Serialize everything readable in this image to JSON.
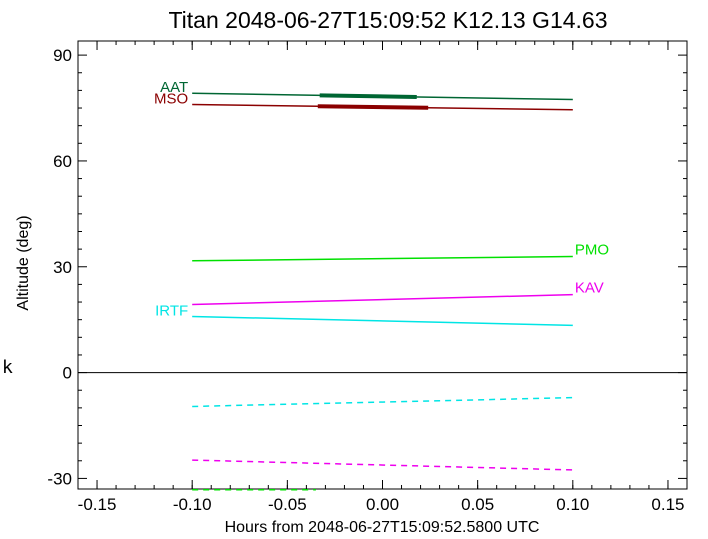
{
  "chart_data": {
    "type": "line",
    "title": "Titan 2048-06-27T15:09:52  K12.13  G14.63",
    "xlabel": "Hours from 2048-06-27T15:09:52.5800 UTC",
    "ylabel": "Altitude (deg)",
    "side_mark": "k",
    "xlim": [
      -0.16,
      0.16
    ],
    "ylim": [
      -33,
      94
    ],
    "xticks": [
      -0.15,
      -0.1,
      -0.05,
      0.0,
      0.05,
      0.1,
      0.15
    ],
    "xtick_labels": [
      "-0.15",
      "-0.10",
      "-0.05",
      "0.00",
      "0.05",
      "0.10",
      "0.15"
    ],
    "yticks": [
      -30,
      0,
      30,
      60,
      90
    ],
    "ytick_labels": [
      "-30",
      "0",
      "30",
      "60",
      "90"
    ],
    "zero_line": 0,
    "series": [
      {
        "name": "AAT",
        "color": "#006633",
        "label_side": "left",
        "x": [
          -0.1,
          0.1
        ],
        "y": [
          79.2,
          77.4
        ],
        "highlight": [
          -0.033,
          0.018
        ]
      },
      {
        "name": "MSO",
        "color": "#8b0000",
        "label_side": "left",
        "x": [
          -0.1,
          0.1
        ],
        "y": [
          76.0,
          74.5
        ],
        "highlight": [
          -0.034,
          0.024
        ]
      },
      {
        "name": "PMO",
        "color": "#00e000",
        "label_side": "right",
        "x": [
          -0.1,
          0.1
        ],
        "y": [
          31.7,
          32.9
        ]
      },
      {
        "name": "KAV",
        "color": "#ee00ee",
        "label_side": "right",
        "x": [
          -0.1,
          0.1
        ],
        "y": [
          19.3,
          22.1
        ]
      },
      {
        "name": "IRTF",
        "color": "#00e5e5",
        "label_side": "left",
        "x": [
          -0.1,
          0.1
        ],
        "y": [
          15.9,
          13.4
        ]
      }
    ],
    "dashed_series": [
      {
        "color": "#00e5e5",
        "x": [
          -0.1,
          0.1
        ],
        "y": [
          -9.6,
          -7.1
        ]
      },
      {
        "color": "#ee00ee",
        "x": [
          -0.1,
          0.1
        ],
        "y": [
          -24.8,
          -27.6
        ]
      },
      {
        "color": "#00e000",
        "x": [
          -0.1,
          -0.035
        ],
        "y": [
          -33.2,
          -33.2
        ]
      }
    ],
    "grid": false
  }
}
